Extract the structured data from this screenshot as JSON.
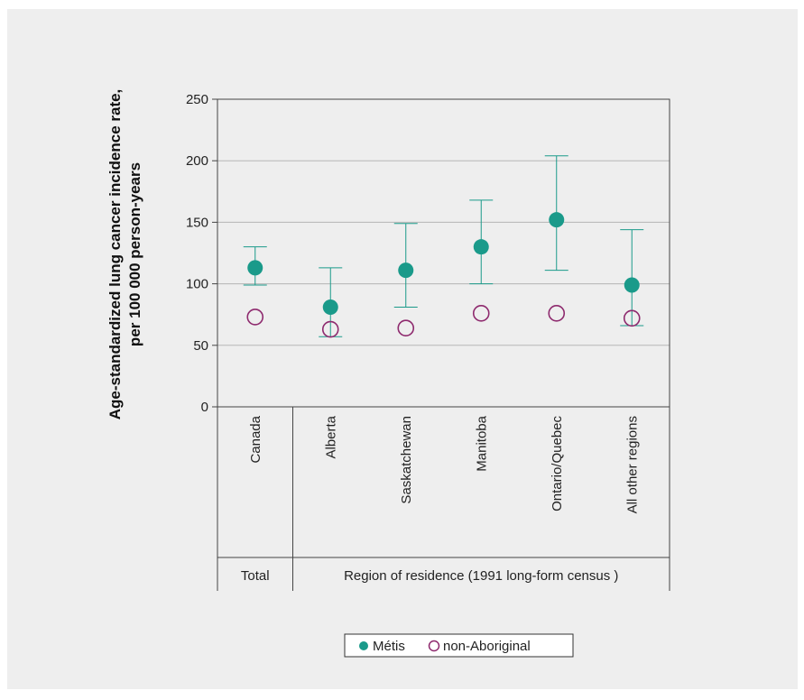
{
  "chart_data": {
    "type": "scatter",
    "ylabel_line1": "Age-standardized lung cancer incidence rate,",
    "ylabel_line2": "per 100 000 person-years",
    "ylim": [
      0,
      250
    ],
    "yticks": [
      0,
      50,
      100,
      150,
      200,
      250
    ],
    "grid": true,
    "categories": [
      "Canada",
      "Alberta",
      "Saskatchewan",
      "Manitoba",
      "Ontario/Quebec",
      "All other regions"
    ],
    "groups": [
      {
        "label": "Total",
        "categories": [
          "Canada"
        ]
      },
      {
        "label": "Region of residence (1991 long-form census )",
        "categories": [
          "Alberta",
          "Saskatchewan",
          "Manitoba",
          "Ontario/Quebec",
          "All other regions"
        ]
      }
    ],
    "series": [
      {
        "name": "Métis",
        "marker": "filled-circle",
        "color": "#1a9a8a",
        "values": [
          113,
          81,
          111,
          130,
          152,
          99
        ],
        "ci_low": [
          99,
          57,
          81,
          100,
          111,
          66
        ],
        "ci_high": [
          130,
          113,
          149,
          168,
          204,
          144
        ]
      },
      {
        "name": "non-Aboriginal",
        "marker": "open-circle",
        "color": "#8e2a6e",
        "values": [
          73,
          63,
          64,
          76,
          76,
          72
        ]
      }
    ],
    "legend_position": "bottom-center"
  }
}
